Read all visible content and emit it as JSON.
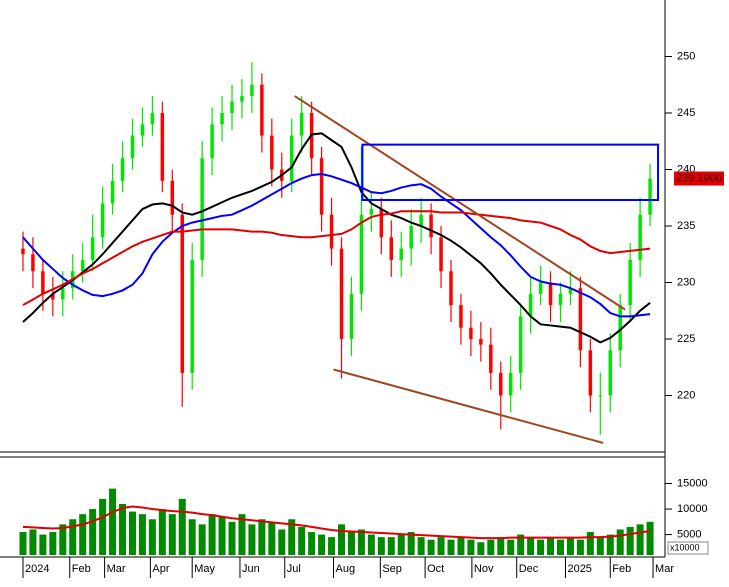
{
  "chart_data": {
    "type": "candlestick",
    "xlim": [
      -0.5,
      64.5
    ],
    "xticks": [
      {
        "value": 0,
        "label": "2024"
      },
      {
        "value": 4.7,
        "label": "Feb"
      },
      {
        "value": 8.2,
        "label": "Mar"
      },
      {
        "value": 12.8,
        "label": "Apr"
      },
      {
        "value": 17,
        "label": "May"
      },
      {
        "value": 21.8,
        "label": "Jun"
      },
      {
        "value": 26.3,
        "label": "Jul"
      },
      {
        "value": 31.2,
        "label": "Aug"
      },
      {
        "value": 35.9,
        "label": "Sep"
      },
      {
        "value": 40.4,
        "label": "Oct"
      },
      {
        "value": 45.1,
        "label": "Nov"
      },
      {
        "value": 49.6,
        "label": "Dec"
      },
      {
        "value": 54.5,
        "label": "2025"
      },
      {
        "value": 59,
        "label": "Feb"
      },
      {
        "value": 63.3,
        "label": "Mar"
      }
    ],
    "ylim": [
      215,
      255
    ],
    "yticks": [
      220,
      225,
      230,
      235,
      240,
      245,
      250
    ],
    "up_color": "#00e600",
    "down_color": "#ff0000",
    "open": [
      233,
      232.5,
      231,
      229,
      228.5,
      229.5,
      231,
      232,
      234,
      237,
      239,
      241,
      243,
      244,
      245,
      239,
      236,
      222,
      232,
      241,
      244,
      245,
      246,
      246.5,
      247.5,
      243,
      240,
      239,
      243,
      245,
      241,
      236,
      233,
      225,
      229,
      236,
      236.5,
      234,
      232,
      233,
      235,
      236,
      234,
      231,
      228,
      226,
      225,
      224.5,
      222,
      220,
      222,
      227,
      229,
      230,
      228,
      229,
      229.5,
      224,
      220,
      220,
      224,
      228,
      232,
      236
    ],
    "high": [
      234.5,
      234,
      232,
      230.5,
      231,
      232.5,
      233.5,
      236,
      238.5,
      240.5,
      242.5,
      244.5,
      245.5,
      246.5,
      246,
      240,
      237,
      233.5,
      242.5,
      245.5,
      246.5,
      247.5,
      248,
      249.5,
      248.5,
      244.5,
      241.5,
      244.5,
      246.5,
      246,
      242,
      237.5,
      234,
      230.5,
      242,
      238,
      237.5,
      235.5,
      234.5,
      236.5,
      237.5,
      237,
      235,
      232,
      229,
      227.5,
      226.5,
      226,
      223,
      223.5,
      228,
      230.5,
      231.5,
      231,
      230,
      231,
      230.5,
      225,
      222,
      225.5,
      229,
      233.5,
      237.5,
      240.5
    ],
    "low": [
      231,
      229.5,
      227.5,
      227,
      227,
      228.5,
      230,
      231,
      233,
      236,
      238,
      240,
      242,
      243,
      238,
      234.5,
      219,
      220.5,
      230.5,
      239.5,
      242.5,
      243.5,
      244.5,
      245,
      241.5,
      238.5,
      237.5,
      238,
      241.5,
      239.5,
      234.5,
      231.5,
      221.5,
      223.5,
      227.5,
      234.5,
      232.5,
      230.5,
      230.5,
      231.5,
      233.5,
      232.5,
      229.5,
      226.5,
      224.5,
      223.5,
      223,
      220.5,
      217,
      218.5,
      220.5,
      225.5,
      228,
      226.5,
      226.5,
      228,
      222.5,
      218.5,
      216.5,
      218.5,
      222.5,
      226.5,
      230.5,
      235
    ],
    "close": [
      232.5,
      231,
      229,
      228.5,
      229.5,
      231,
      232,
      234,
      237,
      239,
      241,
      243,
      244,
      245,
      239,
      236,
      222,
      232,
      241,
      244,
      245,
      246,
      246.5,
      247.5,
      243,
      240,
      239,
      243,
      245,
      241,
      236,
      233,
      225,
      229,
      236,
      236.5,
      234,
      232,
      233,
      235,
      236,
      234,
      231,
      228,
      226,
      225,
      224.5,
      222,
      220,
      222,
      227,
      229,
      230,
      228,
      229,
      229.5,
      224,
      220,
      220,
      224,
      228,
      232,
      236,
      239.2
    ],
    "last_price_label": "239.1900",
    "moving_averages": [
      {
        "color": "#000000",
        "values": [
          226.5,
          227.3,
          228.2,
          229,
          229.6,
          230.2,
          230.9,
          231.6,
          232.5,
          233.5,
          234.5,
          235.5,
          236.5,
          236.9,
          237,
          236.8,
          236.2,
          236,
          236.3,
          236.7,
          237.1,
          237.5,
          237.8,
          238.1,
          238.5,
          238.9,
          239.5,
          240.2,
          241.8,
          243.1,
          243.2,
          242.6,
          242,
          240.2,
          238,
          237,
          236.5,
          236,
          235.7,
          235.3,
          235,
          234.6,
          234.2,
          233.7,
          233.1,
          232.4,
          231.7,
          230.8,
          229.8,
          228.9,
          228,
          227,
          226.3,
          226.2,
          226.1,
          226,
          225.6,
          225.2,
          224.7,
          225.1,
          225.8,
          226.6,
          227.5,
          228.2
        ]
      },
      {
        "color": "#0000ff",
        "values": [
          234,
          233,
          232,
          231.2,
          230.4,
          229.8,
          229.3,
          228.9,
          228.8,
          229,
          229.3,
          229.8,
          230.8,
          232.5,
          233.6,
          234.4,
          235,
          235.3,
          235.5,
          235.7,
          235.9,
          236,
          236.4,
          236.8,
          237.3,
          237.8,
          238.3,
          238.8,
          239.2,
          239.5,
          239.6,
          239.4,
          239.1,
          238.8,
          238.4,
          238,
          237.9,
          238.1,
          238.4,
          238.6,
          238.7,
          238.3,
          237.6,
          237,
          236.4,
          235.6,
          234.8,
          234,
          233.3,
          232.4,
          231.4,
          230.5,
          230.1,
          229.9,
          229.8,
          229.5,
          229.1,
          228.7,
          228.1,
          227.3,
          227,
          227,
          227.1,
          227.2
        ]
      },
      {
        "color": "#e00000",
        "values": [
          228,
          228.5,
          229,
          229.4,
          229.8,
          230.3,
          230.8,
          231.2,
          231.7,
          232.2,
          232.7,
          233.2,
          233.6,
          233.9,
          234.2,
          234.5,
          234.5,
          234.6,
          234.7,
          234.7,
          234.7,
          234.7,
          234.6,
          234.5,
          234.5,
          234.4,
          234.2,
          234.1,
          234,
          234,
          234.1,
          234.2,
          234.3,
          234.7,
          235.3,
          235.8,
          236,
          236.1,
          236.3,
          236.3,
          236.3,
          236.3,
          236.2,
          236.2,
          236.2,
          236.1,
          236,
          235.9,
          235.8,
          235.7,
          235.5,
          235.4,
          235.3,
          235,
          234.7,
          234.2,
          233.8,
          233.2,
          232.8,
          232.6,
          232.7,
          232.8,
          232.9,
          233
        ]
      }
    ],
    "trendlines": [
      {
        "color": "#a0461e",
        "x": [
          27.3,
          60.5
        ],
        "values": [
          246.5,
          227.6
        ]
      },
      {
        "color": "#a0461e",
        "x": [
          31.2,
          58.3
        ],
        "values": [
          222.3,
          215.8
        ]
      }
    ],
    "box": {
      "color": "#0000ff",
      "xlim": [
        34.1,
        63.8
      ],
      "ylim": [
        237.3,
        242.2
      ]
    },
    "volume": {
      "color": "#008a00",
      "values": [
        5500,
        6000,
        5000,
        5500,
        7000,
        8000,
        9000,
        10000,
        12000,
        14000,
        11000,
        9500,
        9000,
        8000,
        10000,
        9000,
        12000,
        8000,
        7000,
        9000,
        8500,
        7500,
        9000,
        7000,
        8000,
        7500,
        6000,
        8000,
        6500,
        5500,
        5000,
        4500,
        7000,
        5500,
        6000,
        5000,
        4500,
        4500,
        5000,
        5500,
        4500,
        4000,
        4500,
        4000,
        4500,
        4000,
        3500,
        4000,
        4500,
        4000,
        5000,
        4500,
        4000,
        4500,
        4000,
        4500,
        4000,
        5500,
        4500,
        5000,
        6000,
        6500,
        7000,
        7500
      ],
      "ma": {
        "color": "#e00000",
        "values": [
          6500,
          6400,
          6300,
          6200,
          6300,
          6600,
          7000,
          7600,
          8400,
          9400,
          10200,
          10500,
          10300,
          10000,
          9800,
          9600,
          9500,
          9300,
          9000,
          8800,
          8500,
          8200,
          8000,
          7800,
          7600,
          7400,
          7200,
          7000,
          6800,
          6500,
          6200,
          5900,
          5700,
          5600,
          5500,
          5400,
          5300,
          5200,
          5100,
          5000,
          4900,
          4800,
          4700,
          4600,
          4500,
          4400,
          4300,
          4300,
          4300,
          4400,
          4400,
          4400,
          4400,
          4400,
          4400,
          4400,
          4400,
          4500,
          4500,
          4600,
          4800,
          5100,
          5400,
          5700
        ]
      },
      "ylim": [
        1000,
        20000
      ],
      "yticks": [
        5000,
        10000,
        15000
      ],
      "unit_label": "x10000"
    }
  }
}
